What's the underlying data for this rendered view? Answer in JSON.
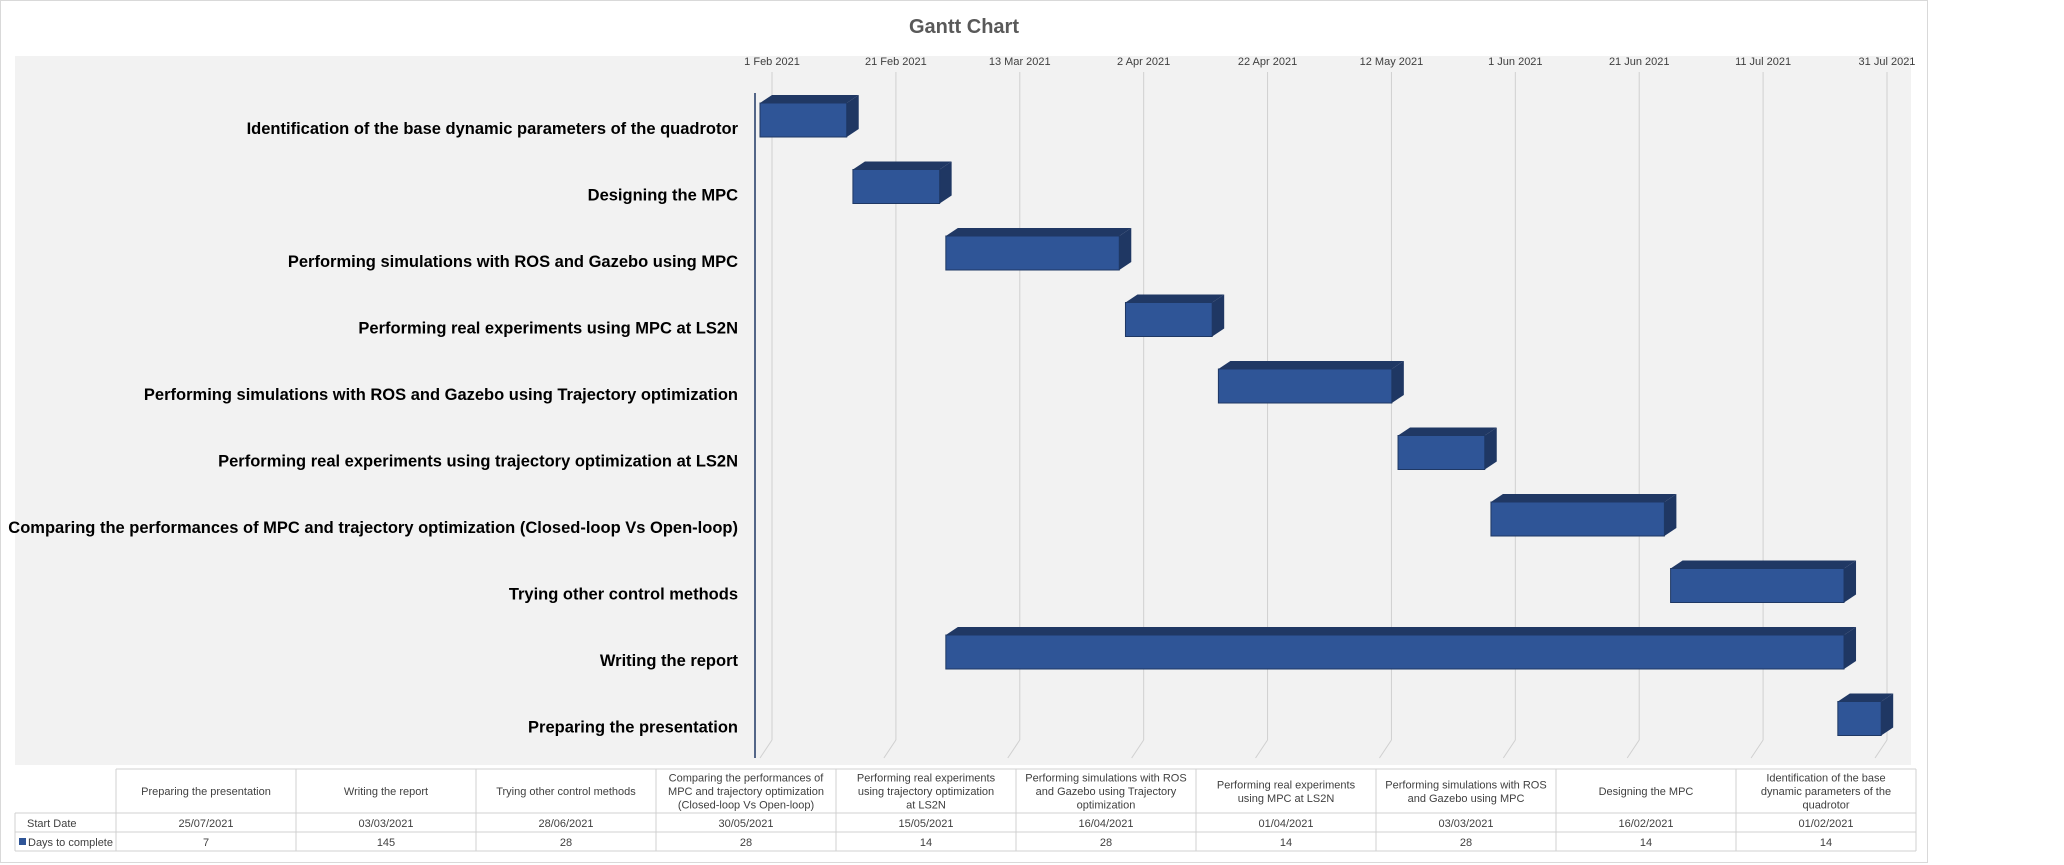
{
  "chart_data": {
    "type": "bar",
    "orientation": "horizontal-stacked-3d",
    "title": "Gantt Chart",
    "x_tick_labels": [
      "1 Feb 2021",
      "21 Feb 2021",
      "13 Mar 2021",
      "2 Apr 2021",
      "22 Apr 2021",
      "12 May 2021",
      "1 Jun 2021",
      "21 Jun 2021",
      "11 Jul 2021",
      "31 Jul 2021"
    ],
    "x_ticks_days": [
      0,
      20,
      40,
      60,
      80,
      100,
      120,
      140,
      160,
      180
    ],
    "x_range_days": [
      0,
      180
    ],
    "tasks": [
      {
        "name": "Identification of the base dynamic parameters of the quadrotor",
        "start_day": 0,
        "duration": 14
      },
      {
        "name": "Designing the MPC",
        "start_day": 15,
        "duration": 14
      },
      {
        "name": "Performing simulations with ROS and Gazebo using MPC",
        "start_day": 30,
        "duration": 28
      },
      {
        "name": "Performing real experiments using MPC at LS2N",
        "start_day": 59,
        "duration": 14
      },
      {
        "name": "Performing simulations with ROS and Gazebo using Trajectory optimization",
        "start_day": 74,
        "duration": 28
      },
      {
        "name": "Performing real experiments using trajectory optimization at LS2N",
        "start_day": 103,
        "duration": 14
      },
      {
        "name": "Comparing the performances of MPC and trajectory optimization (Closed-loop Vs Open-loop)",
        "start_day": 118,
        "duration": 28
      },
      {
        "name": "Trying other control methods",
        "start_day": 147,
        "duration": 28
      },
      {
        "name": "Writing the report",
        "start_day": 30,
        "duration": 145
      },
      {
        "name": "Preparing the presentation",
        "start_day": 174,
        "duration": 7
      }
    ],
    "table": {
      "row_labels": [
        "Start Date",
        "Days to complete"
      ],
      "columns": [
        {
          "header": "Preparing the presentation",
          "start": "25/07/2021",
          "days": "7"
        },
        {
          "header": "Writing the report",
          "start": "03/03/2021",
          "days": "145"
        },
        {
          "header": "Trying other control methods",
          "start": "28/06/2021",
          "days": "28"
        },
        {
          "header": "Comparing the performances of MPC and trajectory optimization (Closed-loop Vs Open-loop)",
          "start": "30/05/2021",
          "days": "28"
        },
        {
          "header": "Performing real experiments using trajectory optimization at LS2N",
          "start": "15/05/2021",
          "days": "14"
        },
        {
          "header": "Performing simulations with ROS and Gazebo using Trajectory optimization",
          "start": "16/04/2021",
          "days": "28"
        },
        {
          "header": "Performing real experiments using MPC at LS2N",
          "start": "01/04/2021",
          "days": "14"
        },
        {
          "header": "Performing simulations with ROS and Gazebo using MPC",
          "start": "03/03/2021",
          "days": "28"
        },
        {
          "header": "Designing the MPC",
          "start": "16/02/2021",
          "days": "14"
        },
        {
          "header": "Identification of the base dynamic parameters of the quadrotor",
          "start": "01/02/2021",
          "days": "14"
        }
      ]
    },
    "colors": {
      "bar_front": "#2f5597",
      "bar_top": "#203864",
      "bar_side": "#1f3763",
      "plot_background": "#f2f2f2",
      "gridline": "#d0d0d0",
      "axis_line": "#1f3864"
    }
  }
}
